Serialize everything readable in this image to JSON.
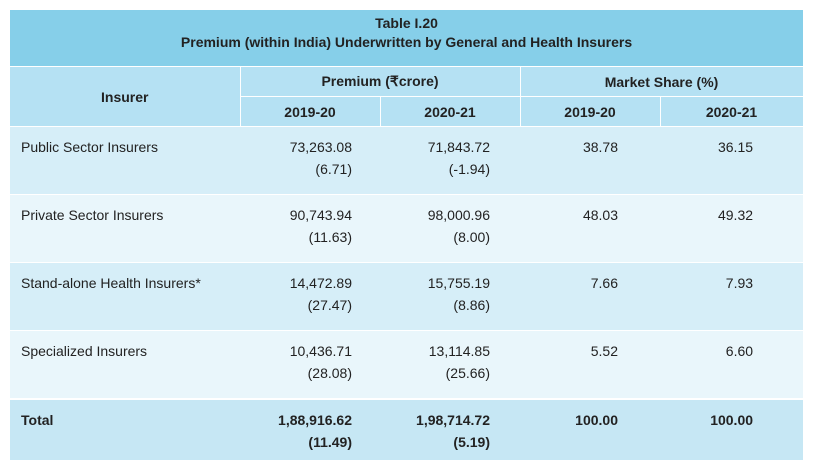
{
  "table": {
    "title": "Table I.20",
    "subtitle": "Premium (within India) Underwritten by General and Health Insurers",
    "header": {
      "insurer": "Insurer",
      "premium": "Premium (₹crore)",
      "market_share": "Market Share (%)",
      "years": [
        "2019-20",
        "2020-21",
        "2019-20",
        "2020-21"
      ]
    },
    "rows": [
      {
        "insurer": "Public Sector Insurers",
        "premium": [
          [
            "73,263.08",
            "(6.71)"
          ],
          [
            "71,843.72",
            "(-1.94)"
          ]
        ],
        "share": [
          "38.78",
          "36.15"
        ]
      },
      {
        "insurer": "Private Sector Insurers",
        "premium": [
          [
            "90,743.94",
            "(11.63)"
          ],
          [
            "98,000.96",
            "(8.00)"
          ]
        ],
        "share": [
          "48.03",
          "49.32"
        ]
      },
      {
        "insurer": "Stand-alone Health Insurers*",
        "premium": [
          [
            "14,472.89",
            "(27.47)"
          ],
          [
            "15,755.19",
            "(8.86)"
          ]
        ],
        "share": [
          "7.66",
          "7.93"
        ]
      },
      {
        "insurer": "Specialized Insurers",
        "premium": [
          [
            "10,436.71",
            "(28.08)"
          ],
          [
            "13,114.85",
            "(25.66)"
          ]
        ],
        "share": [
          "5.52",
          "6.60"
        ]
      },
      {
        "insurer": "Total",
        "premium": [
          [
            "1,88,916.62",
            "(11.49)"
          ],
          [
            "1,98,714.72",
            "(5.19)"
          ]
        ],
        "share": [
          "100.00",
          "100.00"
        ]
      }
    ]
  }
}
